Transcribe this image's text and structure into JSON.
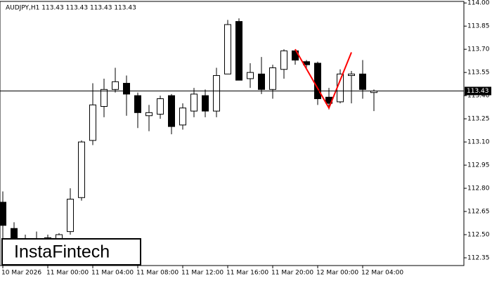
{
  "chart_data": {
    "type": "candlestick",
    "title": "AUDJPY,H1  113.43 113.43 113.43 113.43",
    "logo": "InstaFintech",
    "categories": [
      "10 Mar 2026",
      null,
      null,
      null,
      "11 Mar 00:00",
      null,
      null,
      null,
      "11 Mar 04:00",
      null,
      null,
      null,
      "11 Mar 08:00",
      null,
      null,
      null,
      "11 Mar 12:00",
      null,
      null,
      null,
      "11 Mar 16:00",
      null,
      null,
      null,
      "11 Mar 20:00",
      null,
      null,
      null,
      "12 Mar 00:00",
      null,
      null,
      null,
      "12 Mar 04:00",
      null
    ],
    "open": [
      112.71,
      112.54,
      112.47,
      112.45,
      112.47,
      112.47,
      112.52,
      112.74,
      113.11,
      113.33,
      113.44,
      113.48,
      113.4,
      113.27,
      113.28,
      113.4,
      113.21,
      113.3,
      113.4,
      113.3,
      113.54,
      113.88,
      113.51,
      113.54,
      113.44,
      113.57,
      113.69,
      113.62,
      113.61,
      113.39,
      113.36,
      113.53,
      113.54,
      113.42
    ],
    "high": [
      112.78,
      112.58,
      112.5,
      112.52,
      112.5,
      112.51,
      112.8,
      113.11,
      113.48,
      113.51,
      113.58,
      113.53,
      113.42,
      113.34,
      113.4,
      113.41,
      113.35,
      113.45,
      113.44,
      113.58,
      113.89,
      113.9,
      113.61,
      113.65,
      113.6,
      113.7,
      113.7,
      113.63,
      113.62,
      113.45,
      113.57,
      113.56,
      113.63,
      113.44
    ],
    "low": [
      112.3,
      112.35,
      112.38,
      112.38,
      112.4,
      112.42,
      112.5,
      112.72,
      113.08,
      113.26,
      113.42,
      113.27,
      113.19,
      113.17,
      113.25,
      113.15,
      113.18,
      113.26,
      113.26,
      113.26,
      113.54,
      113.5,
      113.45,
      113.41,
      113.38,
      113.51,
      113.6,
      113.58,
      113.34,
      113.31,
      113.35,
      113.35,
      113.38,
      113.3
    ],
    "close": [
      112.56,
      112.45,
      112.46,
      112.44,
      112.48,
      112.5,
      112.73,
      113.1,
      113.34,
      113.44,
      113.49,
      113.41,
      113.29,
      113.29,
      113.38,
      113.2,
      113.32,
      113.41,
      113.3,
      113.53,
      113.86,
      113.5,
      113.55,
      113.44,
      113.58,
      113.69,
      113.63,
      113.6,
      113.38,
      113.35,
      113.54,
      113.54,
      113.44,
      113.43
    ],
    "up_color": "#ffffff",
    "down_color": "#000000",
    "current_price": 113.43,
    "pattern": {
      "color": "#ff0000",
      "index": [
        26,
        29,
        31
      ],
      "values": [
        113.7,
        113.32,
        113.68
      ]
    },
    "ylim": [
      112.3,
      114.01
    ],
    "yticks": [
      {
        "value": 114,
        "label": "114.00"
      },
      113.85,
      {
        "value": 113.7,
        "label": "113.70"
      },
      113.55,
      {
        "value": 113.4,
        "label": "113.40"
      },
      113.25,
      {
        "value": 113.1,
        "label": "113.10"
      },
      112.95,
      {
        "value": 112.8,
        "label": "112.80"
      },
      112.65,
      {
        "value": 112.5,
        "label": "112.50"
      },
      112.35
    ]
  }
}
